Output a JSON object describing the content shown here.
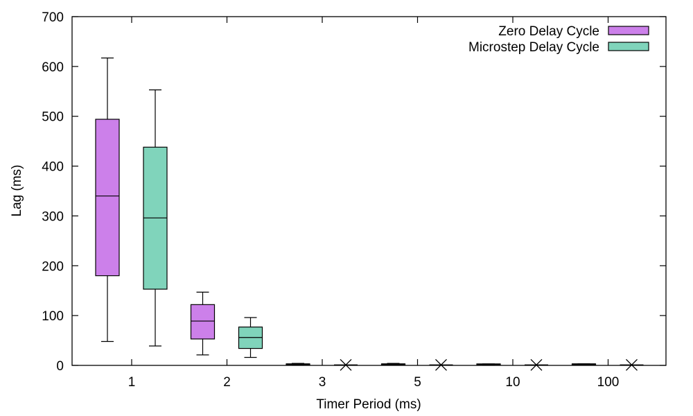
{
  "chart_data": {
    "type": "boxplot",
    "title": "",
    "xlabel": "Timer Period (ms)",
    "ylabel": "Lag (ms)",
    "ylim": [
      0,
      700
    ],
    "yticks": [
      0,
      100,
      200,
      300,
      400,
      500,
      600,
      700
    ],
    "categories": [
      "1",
      "2",
      "3",
      "5",
      "10",
      "100"
    ],
    "grid": false,
    "legend_position": "top-right",
    "series": [
      {
        "name": "Zero Delay Cycle",
        "color": "#cc80ea",
        "boxes": [
          {
            "min": 48,
            "q1": 180,
            "median": 340,
            "q3": 494,
            "max": 617
          },
          {
            "min": 21,
            "q1": 53,
            "median": 89,
            "q3": 122,
            "max": 147
          },
          {
            "min": 1,
            "q1": 2,
            "median": 3,
            "q3": 3,
            "max": 4
          },
          {
            "min": 2,
            "q1": 3,
            "median": 3,
            "q3": 3,
            "max": 4
          },
          {
            "min": 1,
            "q1": 2,
            "median": 2,
            "q3": 3,
            "max": 3
          },
          {
            "min": 3,
            "q1": 3,
            "median": 3,
            "q3": 3,
            "max": 3
          }
        ]
      },
      {
        "name": "Microstep Delay Cycle",
        "color": "#80d4bb",
        "boxes": [
          {
            "min": 39,
            "q1": 153,
            "median": 296,
            "q3": 438,
            "max": 553
          },
          {
            "min": 16,
            "q1": 34,
            "median": 56,
            "q3": 77,
            "max": 96
          },
          {
            "min": 1,
            "q1": 1,
            "median": 1,
            "q3": 1,
            "max": 1,
            "marker": "x"
          },
          {
            "min": 1,
            "q1": 1,
            "median": 1,
            "q3": 1,
            "max": 1,
            "marker": "x"
          },
          {
            "min": 1,
            "q1": 1,
            "median": 1,
            "q3": 1,
            "max": 1,
            "marker": "x"
          },
          {
            "min": 1,
            "q1": 1,
            "median": 1,
            "q3": 1,
            "max": 1,
            "marker": "x"
          }
        ]
      }
    ]
  }
}
